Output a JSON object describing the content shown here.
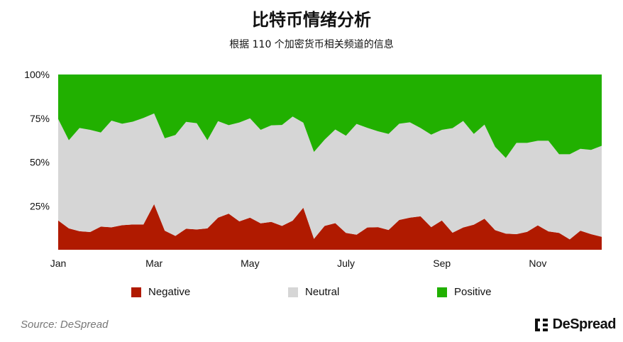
{
  "title": "比特币情绪分析",
  "subtitle": "根据 110 个加密货币相关频道的信息",
  "source": "Source: DeSpread",
  "logo_text": "DeSpread",
  "chart_data": {
    "type": "area",
    "stacked": true,
    "normalized": true,
    "title": "比特币情绪分析",
    "subtitle": "根据 110 个加密货币相关频道的信息",
    "ylim": [
      0,
      100
    ],
    "y_tick_labels": [
      "25%",
      "50%",
      "75%",
      "100%"
    ],
    "y_ticks": [
      25,
      50,
      75,
      100
    ],
    "x_tick_labels": [
      {
        "label": "Jan",
        "point": 0
      },
      {
        "label": "Mar",
        "point": 9
      },
      {
        "label": "May",
        "point": 18
      },
      {
        "label": "July",
        "point": 27
      },
      {
        "label": "Sep",
        "point": 36
      },
      {
        "label": "Nov",
        "point": 45
      }
    ],
    "grid": false,
    "legend_position": "bottom",
    "series": [
      {
        "name": "Negative",
        "color": "#b01a00",
        "values": [
          16.7,
          12.2,
          10.6,
          10.1,
          13.2,
          12.8,
          14.0,
          14.4,
          14.4,
          26.0,
          10.9,
          7.9,
          12.0,
          11.6,
          12.2,
          18.3,
          20.6,
          16.2,
          18.3,
          15.1,
          15.9,
          13.6,
          16.6,
          24.0,
          6.2,
          13.6,
          15.2,
          9.6,
          8.6,
          12.7,
          12.9,
          11.3,
          17.0,
          18.3,
          19.1,
          12.9,
          16.7,
          9.7,
          12.7,
          14.3,
          17.7,
          11.2,
          9.2,
          8.9,
          10.2,
          13.9,
          10.5,
          9.6,
          5.9,
          10.9,
          8.9,
          7.4
        ]
      },
      {
        "name": "Neutral",
        "color": "#d6d6d6",
        "values": [
          57.9,
          50.3,
          58.9,
          58.3,
          53.7,
          60.9,
          57.9,
          58.7,
          60.8,
          51.8,
          52.7,
          57.6,
          61.0,
          60.6,
          50.3,
          55.1,
          50.5,
          56.4,
          56.7,
          53.3,
          55.1,
          57.6,
          59.4,
          48.5,
          49.6,
          49.2,
          53.4,
          55.5,
          63.2,
          56.9,
          54.7,
          54.8,
          54.9,
          54.4,
          50.4,
          52.8,
          51.7,
          59.7,
          60.8,
          51.8,
          53.7,
          47.5,
          43.2,
          52.1,
          50.8,
          48.3,
          51.7,
          44.9,
          48.6,
          46.7,
          48.1,
          51.9
        ]
      },
      {
        "name": "Positive",
        "color": "#21b000",
        "values": [
          25.4,
          37.5,
          30.5,
          31.6,
          33.1,
          26.3,
          28.1,
          26.9,
          24.8,
          22.2,
          36.4,
          34.5,
          27.0,
          27.8,
          37.5,
          26.6,
          28.9,
          27.4,
          25.0,
          31.6,
          29.0,
          28.8,
          24.0,
          27.5,
          44.2,
          37.2,
          31.4,
          34.9,
          28.2,
          30.4,
          32.4,
          33.9,
          28.1,
          27.3,
          30.5,
          34.3,
          31.6,
          30.6,
          26.5,
          33.9,
          28.6,
          41.3,
          47.6,
          39.0,
          39.0,
          37.8,
          37.8,
          45.5,
          45.5,
          42.4,
          43.0,
          40.7
        ]
      }
    ]
  }
}
